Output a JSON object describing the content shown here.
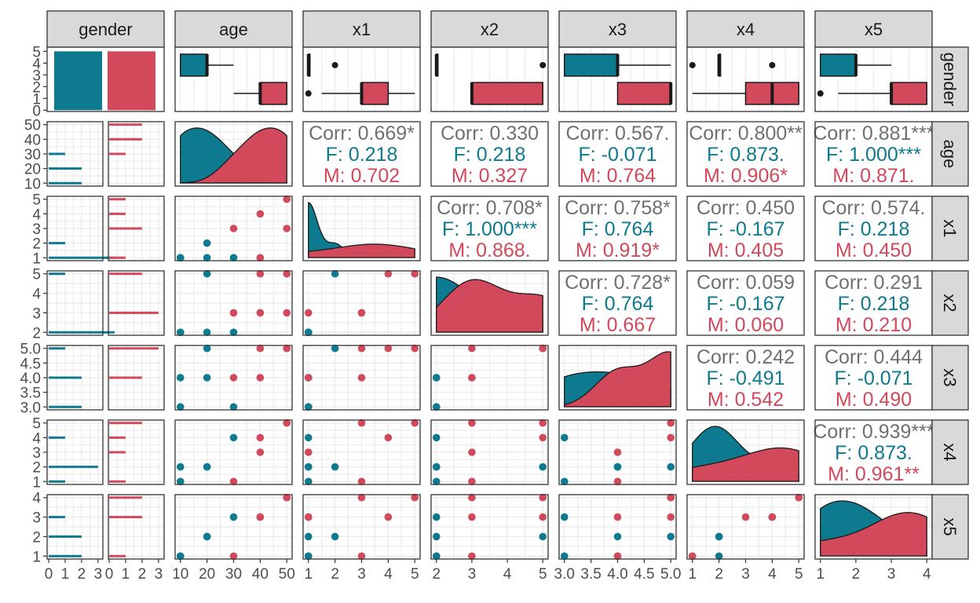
{
  "chart_data": {
    "type": "scatter-matrix",
    "variables": [
      "gender",
      "age",
      "x1",
      "x2",
      "x3",
      "x4",
      "x5"
    ],
    "groups": [
      "F",
      "M"
    ],
    "colors": {
      "F": "#0D7A8F",
      "M": "#D2495B",
      "overall": "#707070"
    },
    "tick_labels": {
      "gender": [
        "0",
        "1",
        "2",
        "3",
        "4",
        "5"
      ],
      "age": [
        "10",
        "20",
        "30",
        "40",
        "50"
      ],
      "x1": [
        "1",
        "2",
        "3",
        "4",
        "5"
      ],
      "x2": [
        "2",
        "3",
        "4",
        "5"
      ],
      "x3": [
        "3.0",
        "3.5",
        "4.0",
        "4.5",
        "5.0"
      ],
      "x4": [
        "1",
        "2",
        "3",
        "4",
        "5"
      ],
      "x5": [
        "1",
        "2",
        "3",
        "4"
      ]
    },
    "bottom_axis_gender_ticks": [
      "0",
      "1",
      "2",
      "3"
    ],
    "ranges": {
      "age": [
        10,
        50
      ],
      "x1": [
        1,
        5
      ],
      "x2": [
        2,
        5
      ],
      "x3": [
        3,
        5
      ],
      "x4": [
        1,
        5
      ],
      "x5": [
        1,
        4
      ]
    },
    "gender_counts": {
      "F": 5,
      "M": 5
    },
    "observations": [
      {
        "gender": "F",
        "age": 10,
        "x1": 1,
        "x2": 2,
        "x3": 3,
        "x4": 1,
        "x5": 1
      },
      {
        "gender": "F",
        "age": 10,
        "x1": 1,
        "x2": 2,
        "x3": 4,
        "x4": 2,
        "x5": 1
      },
      {
        "gender": "F",
        "age": 20,
        "x1": 2,
        "x2": 5,
        "x3": 5,
        "x4": 2,
        "x5": 2
      },
      {
        "gender": "F",
        "age": 20,
        "x1": 1,
        "x2": 2,
        "x3": 4,
        "x4": 2,
        "x5": 2
      },
      {
        "gender": "F",
        "age": 30,
        "x1": 1,
        "x2": 2,
        "x3": 3,
        "x4": 4,
        "x5": 3
      },
      {
        "gender": "M",
        "age": 30,
        "x1": 3,
        "x2": 3,
        "x3": 4,
        "x4": 1,
        "x5": 1
      },
      {
        "gender": "M",
        "age": 40,
        "x1": 1,
        "x2": 3,
        "x3": 4,
        "x4": 3,
        "x5": 3
      },
      {
        "gender": "M",
        "age": 40,
        "x1": 4,
        "x2": 5,
        "x3": 5,
        "x4": 4,
        "x5": 3
      },
      {
        "gender": "M",
        "age": 50,
        "x1": 5,
        "x2": 5,
        "x3": 5,
        "x4": 5,
        "x5": 4
      },
      {
        "gender": "M",
        "age": 50,
        "x1": 3,
        "x2": 3,
        "x3": 5,
        "x4": 5,
        "x5": 4
      }
    ],
    "correlations": [
      {
        "row": "age",
        "col": "x1",
        "corr": "Corr: 0.669*",
        "f": "F: 0.218",
        "m": "M: 0.702"
      },
      {
        "row": "age",
        "col": "x2",
        "corr": "Corr: 0.330",
        "f": "F: 0.218",
        "m": "M: 0.327"
      },
      {
        "row": "age",
        "col": "x3",
        "corr": "Corr: 0.567.",
        "f": "F: -0.071",
        "m": "M: 0.764"
      },
      {
        "row": "age",
        "col": "x4",
        "corr": "Corr: 0.800**",
        "f": "F: 0.873.",
        "m": "M: 0.906*"
      },
      {
        "row": "age",
        "col": "x5",
        "corr": "Corr: 0.881***",
        "f": "F: 1.000***",
        "m": "M: 0.871."
      },
      {
        "row": "x1",
        "col": "x2",
        "corr": "Corr: 0.708*",
        "f": "F: 1.000***",
        "m": "M: 0.868."
      },
      {
        "row": "x1",
        "col": "x3",
        "corr": "Corr: 0.758*",
        "f": "F: 0.764",
        "m": "M: 0.919*"
      },
      {
        "row": "x1",
        "col": "x4",
        "corr": "Corr: 0.450",
        "f": "F: -0.167",
        "m": "M: 0.405"
      },
      {
        "row": "x1",
        "col": "x5",
        "corr": "Corr: 0.574.",
        "f": "F: 0.218",
        "m": "M: 0.450"
      },
      {
        "row": "x2",
        "col": "x3",
        "corr": "Corr: 0.728*",
        "f": "F: 0.764",
        "m": "M: 0.667"
      },
      {
        "row": "x2",
        "col": "x4",
        "corr": "Corr: 0.059",
        "f": "F: -0.167",
        "m": "M: 0.060"
      },
      {
        "row": "x2",
        "col": "x5",
        "corr": "Corr: 0.291",
        "f": "F: 0.218",
        "m": "M: 0.210"
      },
      {
        "row": "x3",
        "col": "x4",
        "corr": "Corr: 0.242",
        "f": "F: -0.491",
        "m": "M: 0.542"
      },
      {
        "row": "x3",
        "col": "x5",
        "corr": "Corr: 0.444",
        "f": "F: -0.071",
        "m": "M: 0.490"
      },
      {
        "row": "x4",
        "col": "x5",
        "corr": "Corr: 0.939***",
        "f": "F: 0.873.",
        "m": "M: 0.961**"
      }
    ]
  }
}
